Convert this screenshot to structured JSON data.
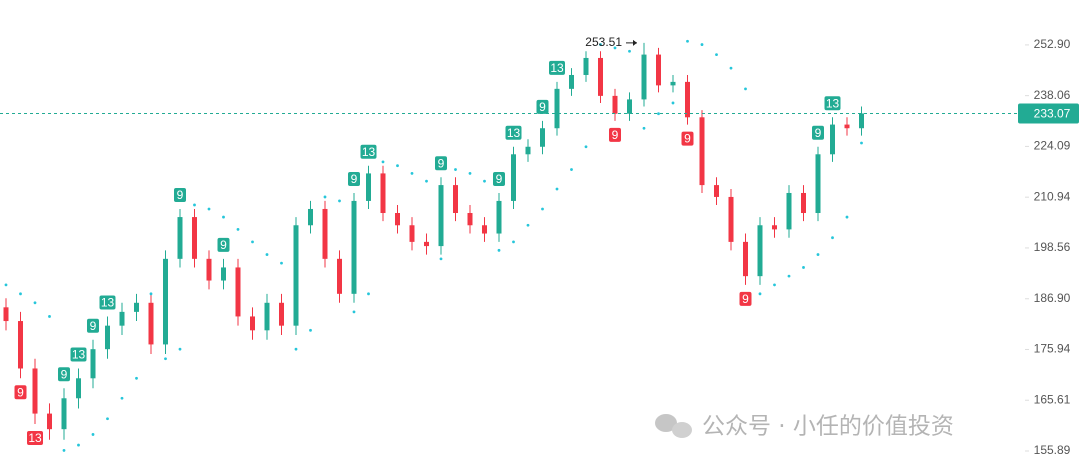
{
  "chart_data": {
    "type": "candlestick",
    "log_scale": true,
    "ylim": [
      152.95,
      266.8
    ],
    "yticks": [
      155.89,
      165.61,
      175.94,
      {
        "value": 186.9,
        "label": "186.90"
      },
      198.56,
      210.94,
      224.09,
      238.06,
      {
        "value": 252.9,
        "label": "252.90"
      }
    ],
    "open": [
      185,
      182,
      172,
      163,
      160,
      166,
      170,
      176,
      181,
      184,
      186,
      177,
      196,
      206,
      196,
      191,
      194,
      183,
      180,
      186,
      181,
      204,
      208,
      196,
      188,
      210,
      217,
      207,
      204,
      200,
      199,
      214,
      207,
      204,
      202,
      210,
      222,
      224,
      229,
      240,
      244,
      249,
      238,
      233,
      237,
      250,
      241,
      242,
      232,
      214,
      211,
      200,
      192,
      204,
      203,
      212,
      207,
      222,
      230,
      229
    ],
    "high": [
      187,
      184,
      174,
      165,
      168,
      172,
      178,
      183,
      186,
      188,
      188,
      198,
      208,
      208,
      198,
      196,
      196,
      185,
      188,
      188,
      206,
      210,
      210,
      198,
      212,
      219,
      219,
      209,
      206,
      202,
      216,
      216,
      209,
      206,
      212,
      224,
      226,
      231,
      242,
      246,
      251,
      251,
      240,
      239,
      253.51,
      252,
      244,
      244,
      234,
      216,
      213,
      202,
      206,
      206,
      214,
      214,
      224,
      232,
      232,
      235
    ],
    "low": [
      180,
      170,
      161,
      158,
      158,
      164,
      168,
      174,
      179,
      182,
      175,
      175,
      194,
      194,
      189,
      189,
      181,
      178,
      178,
      179,
      179,
      202,
      194,
      186,
      186,
      208,
      205,
      202,
      198,
      197,
      197,
      205,
      202,
      200,
      200,
      208,
      220,
      222,
      227,
      238,
      242,
      236,
      231,
      231,
      235,
      239,
      239,
      230,
      212,
      209,
      198,
      190,
      190,
      201,
      201,
      205,
      205,
      220,
      227,
      227
    ],
    "close": [
      182,
      172,
      163,
      160,
      166,
      170,
      176,
      181,
      184,
      186,
      177,
      196,
      206,
      196,
      191,
      194,
      183,
      180,
      186,
      181,
      204,
      208,
      196,
      188,
      210,
      217,
      207,
      204,
      200,
      199,
      214,
      207,
      204,
      202,
      210,
      222,
      224,
      229,
      240,
      244,
      249,
      238,
      233,
      237,
      250,
      241,
      242,
      232,
      214,
      211,
      200,
      192,
      204,
      203,
      212,
      207,
      222,
      230,
      229,
      233.07
    ],
    "sar": [
      190,
      188,
      186,
      183,
      156,
      157,
      159,
      162,
      166,
      170,
      188,
      174,
      176,
      209,
      208,
      206,
      203,
      200,
      197,
      195,
      176,
      180,
      211,
      210,
      184,
      188,
      220,
      219,
      217,
      215,
      196,
      218,
      217,
      215,
      198,
      200,
      204,
      208,
      213,
      218,
      224,
      253,
      252,
      251,
      229,
      233,
      236,
      254,
      253,
      250,
      246,
      240,
      188,
      190,
      192,
      194,
      197,
      201,
      206,
      225
    ],
    "up_color": "#22ab94",
    "down_color": "#f23645",
    "sar_color": "#26c6da",
    "signals": [
      {
        "index": 1,
        "label": "9",
        "position": "below"
      },
      {
        "index": 2,
        "label": "13",
        "position": "below"
      },
      {
        "index": 4,
        "label": "9",
        "position": "above"
      },
      {
        "index": 5,
        "label": "13",
        "position": "above"
      },
      {
        "index": 6,
        "label": "9",
        "position": "above"
      },
      {
        "index": 7,
        "label": "13",
        "position": "above"
      },
      {
        "index": 12,
        "label": "9",
        "position": "above"
      },
      {
        "index": 15,
        "label": "9",
        "position": "above"
      },
      {
        "index": 24,
        "label": "9",
        "position": "above"
      },
      {
        "index": 25,
        "label": "13",
        "position": "above"
      },
      {
        "index": 30,
        "label": "9",
        "position": "above"
      },
      {
        "index": 34,
        "label": "9",
        "position": "above"
      },
      {
        "index": 35,
        "label": "13",
        "position": "above"
      },
      {
        "index": 37,
        "label": "9",
        "position": "above"
      },
      {
        "index": 38,
        "label": "13",
        "position": "above"
      },
      {
        "index": 42,
        "label": "9",
        "position": "below"
      },
      {
        "index": 47,
        "label": "9",
        "position": "below"
      },
      {
        "index": 51,
        "label": "9",
        "position": "below"
      },
      {
        "index": 56,
        "label": "9",
        "position": "above"
      },
      {
        "index": 57,
        "label": "13",
        "position": "above"
      }
    ],
    "max_index": 44,
    "last_price_line": true
  },
  "watermark": "公众号 · 小任的价值投资"
}
